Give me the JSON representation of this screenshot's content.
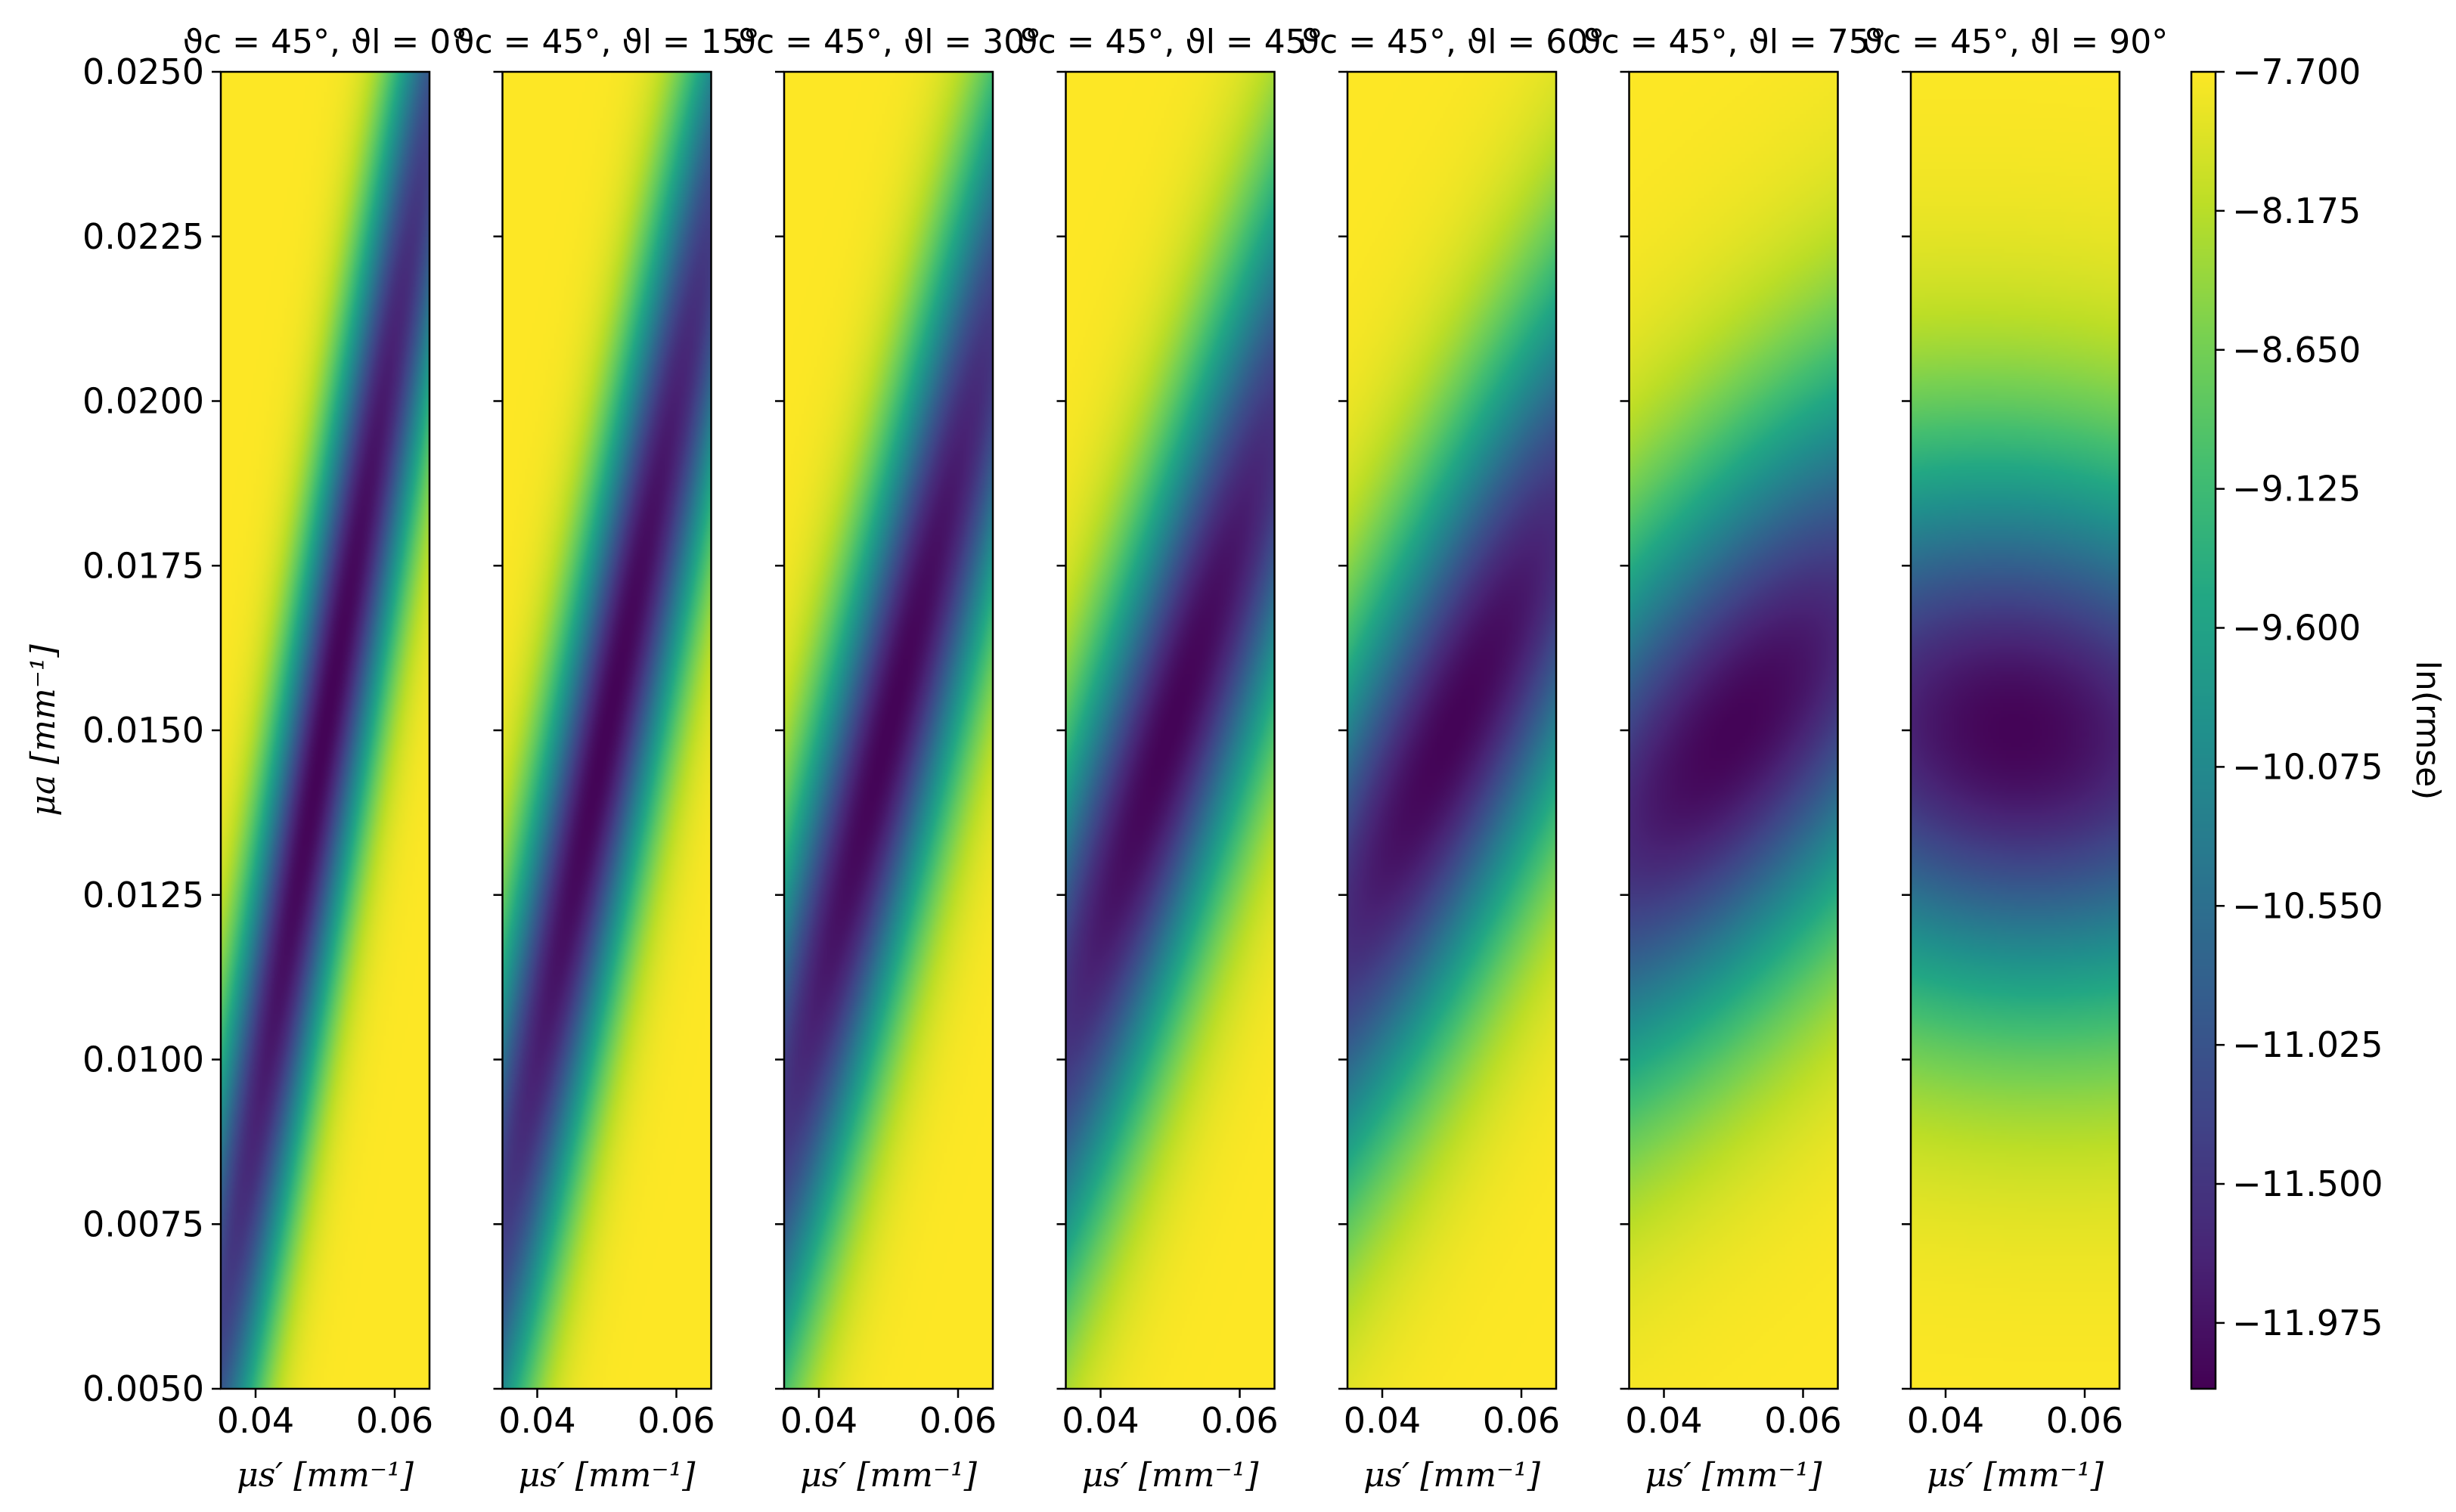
{
  "chart_data": {
    "type": "heatmap",
    "panels": [
      {
        "title": "ϑc = 45°, ϑl = 0°",
        "theta_c": 45,
        "theta_l": 0
      },
      {
        "title": "ϑc = 45°, ϑl = 15°",
        "theta_c": 45,
        "theta_l": 15
      },
      {
        "title": "ϑc = 45°, ϑl = 30°",
        "theta_c": 45,
        "theta_l": 30
      },
      {
        "title": "ϑc = 45°, ϑl = 45°",
        "theta_c": 45,
        "theta_l": 45
      },
      {
        "title": "ϑc = 45°, ϑl = 60°",
        "theta_c": 45,
        "theta_l": 60
      },
      {
        "title": "ϑc = 45°, ϑl = 75°",
        "theta_c": 45,
        "theta_l": 75
      },
      {
        "title": "ϑc = 45°, ϑl = 90°",
        "theta_c": 45,
        "theta_l": 90
      }
    ],
    "xlabel": "μs′ [mm⁻¹]",
    "ylabel": "μa [mm⁻¹]",
    "xlim": [
      0.035,
      0.065
    ],
    "ylim": [
      0.005,
      0.025
    ],
    "xticks": [
      0.04,
      0.06
    ],
    "xtick_labels": [
      "0.04",
      "0.06"
    ],
    "yticks": [
      0.005,
      0.0075,
      0.01,
      0.0125,
      0.015,
      0.0175,
      0.02,
      0.0225,
      0.025
    ],
    "ytick_labels": [
      "0.0050",
      "0.0075",
      "0.0100",
      "0.0125",
      "0.0150",
      "0.0175",
      "0.0200",
      "0.0225",
      "0.0250"
    ],
    "minimum": {
      "x": 0.05,
      "y": 0.015
    },
    "colorbar": {
      "label": "ln(rmse)",
      "range": [
        -12.2,
        -7.7
      ],
      "ticks": [
        -7.7,
        -8.175,
        -8.65,
        -9.125,
        -9.6,
        -10.075,
        -10.55,
        -11.025,
        -11.5,
        -11.975
      ],
      "tick_labels": [
        "−7.700",
        "−8.175",
        "−8.650",
        "−9.125",
        "−9.600",
        "−10.075",
        "−10.550",
        "−11.025",
        "−11.500",
        "−11.975"
      ],
      "colormap": "viridis"
    },
    "grid": false,
    "legend": "none"
  }
}
